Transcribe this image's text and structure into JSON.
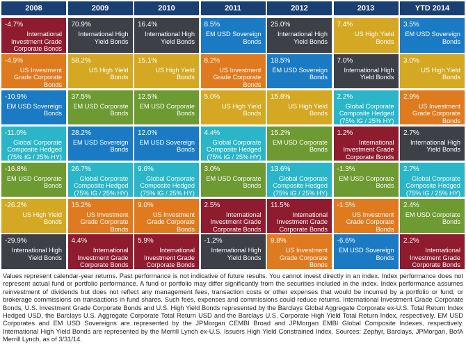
{
  "chart_data": {
    "type": "table",
    "years": [
      "2008",
      "2009",
      "2010",
      "2011",
      "2012",
      "2013",
      "YTD 2014"
    ],
    "categories": {
      "IIG": {
        "name": "International Investment Grade Corporate Bonds",
        "color": "#8e1b2e"
      },
      "USIG": {
        "name": "US Investment Grade Corporate Bonds",
        "color": "#e07a1f"
      },
      "EMSOV": {
        "name": "EM USD Sovereign Bonds",
        "color": "#1a7bc4"
      },
      "GCC": {
        "name": "Global Corporate Composite Hedged (75% IG / 25% HY)",
        "color": "#2bb5c9"
      },
      "EMCORP": {
        "name": "EM USD Corporate Bonds",
        "color": "#6e9a32"
      },
      "USHY": {
        "name": "US High Yield Bonds",
        "color": "#d4a823"
      },
      "IHY": {
        "name": "International High Yield Bonds",
        "color": "#3d4047"
      }
    },
    "columns": [
      [
        {
          "value": "-4.7%",
          "cat": "IIG",
          "label": "International Investment Grade Corporate Bonds"
        },
        {
          "value": "-4.9%",
          "cat": "USIG",
          "label": "US Investment Grade Corporate Bonds"
        },
        {
          "value": "-10.9%",
          "cat": "EMSOV",
          "label": "EM USD Sovereign Bonds"
        },
        {
          "value": "-11.0%",
          "cat": "GCC",
          "label": "Global Corporate Composite Hedged (75% IG / 25% HY)"
        },
        {
          "value": "-16.8%",
          "cat": "EMCORP",
          "label": "EM USD Corporate Bonds"
        },
        {
          "value": "-26.2%",
          "cat": "USHY",
          "label": "US High Yield Bonds"
        },
        {
          "value": "-29.9%",
          "cat": "IHY",
          "label": "International High Yield Bonds"
        }
      ],
      [
        {
          "value": "70.9%",
          "cat": "IHY",
          "label": "International High Yield Bonds"
        },
        {
          "value": "58.2%",
          "cat": "USHY",
          "label": "US High Yield Bonds"
        },
        {
          "value": "37.5%",
          "cat": "EMCORP",
          "label": "EM USD Corporate Bonds"
        },
        {
          "value": "28.2%",
          "cat": "EMSOV",
          "label": "EM USD Sovereign Bonds"
        },
        {
          "value": "26.7%",
          "cat": "GCC",
          "label": "Global Corporate Composite Hedged (75% IG / 25% HY)"
        },
        {
          "value": "15.2%",
          "cat": "USIG",
          "label": "US Investment Grade Corporate Bonds"
        },
        {
          "value": "4.4%",
          "cat": "IIG",
          "label": "International Investment Grade Corporate Bonds"
        }
      ],
      [
        {
          "value": "16.4%",
          "cat": "IHY",
          "label": "International High Yield Bonds"
        },
        {
          "value": "15.1%",
          "cat": "USHY",
          "label": "US High Yield Bonds"
        },
        {
          "value": "12.5%",
          "cat": "EMCORP",
          "label": "EM USD Corporate Bonds"
        },
        {
          "value": "12.0%",
          "cat": "EMSOV",
          "label": "EM USD Sovereign Bonds"
        },
        {
          "value": "9.6%",
          "cat": "GCC",
          "label": "Global Corporate Composite Hedged (75% IG / 25% HY)"
        },
        {
          "value": "9.0%",
          "cat": "USIG",
          "label": "US Investment Grade Corporate Bonds"
        },
        {
          "value": "5.9%",
          "cat": "IIG",
          "label": "International Investment Grade Corporate Bonds"
        }
      ],
      [
        {
          "value": "8.5%",
          "cat": "EMSOV",
          "label": "EM USD Sovereign Bonds"
        },
        {
          "value": "8.2%",
          "cat": "USIG",
          "label": "US Investment Grade Corporate Bonds"
        },
        {
          "value": "5.0%",
          "cat": "USHY",
          "label": "US High Yield Bonds"
        },
        {
          "value": "4.4%",
          "cat": "GCC",
          "label": "Global Corporate Composite Hedged (75% IG / 25% HY)"
        },
        {
          "value": "3.0%",
          "cat": "EMCORP",
          "label": "EM USD Corporate Bonds"
        },
        {
          "value": "2.5%",
          "cat": "IIG",
          "label": "International Investment Grade Corporate Bonds"
        },
        {
          "value": "-1.2%",
          "cat": "IHY",
          "label": "International High Yield Bonds"
        }
      ],
      [
        {
          "value": "25.0%",
          "cat": "IHY",
          "label": "International High Yield Bonds"
        },
        {
          "value": "18.5%",
          "cat": "EMSOV",
          "label": "EM USD Sovereign Bonds"
        },
        {
          "value": "15.8%",
          "cat": "USHY",
          "label": "US High Yield Bonds"
        },
        {
          "value": "15.2%",
          "cat": "EMCORP",
          "label": "EM USD Corporate Bonds"
        },
        {
          "value": "13.6%",
          "cat": "GCC",
          "label": "Global Corporate Composite Hedged (75% IG / 25% HY)"
        },
        {
          "value": "11.5%",
          "cat": "IIG",
          "label": "International Investment Grade Corporate Bonds"
        },
        {
          "value": "9.8%",
          "cat": "USIG",
          "label": "US Investment Grade Corporate Bonds"
        }
      ],
      [
        {
          "value": "7.4%",
          "cat": "USHY",
          "label": "US High Yield Bonds"
        },
        {
          "value": "7.0%",
          "cat": "IHY",
          "label": "International High Yield Bonds"
        },
        {
          "value": "2.2%",
          "cat": "GCC",
          "label": "Global Corporate Composite Hedged (75% IG / 25% HY)"
        },
        {
          "value": "1.2%",
          "cat": "IIG",
          "label": "International Investment Grade Corporate Bonds"
        },
        {
          "value": "-1.3%",
          "cat": "EMCORP",
          "label": "EM USD Corporate Bonds"
        },
        {
          "value": "-1.5%",
          "cat": "USIG",
          "label": "US Investment Grade Corporate Bonds"
        },
        {
          "value": "-6.6%",
          "cat": "EMSOV",
          "label": "EM USD Sovereign Bonds"
        }
      ],
      [
        {
          "value": "3.5%",
          "cat": "EMSOV",
          "label": "EM USD Sovereign Bonds"
        },
        {
          "value": "3.0%",
          "cat": "USHY",
          "label": "US High Yield Bonds"
        },
        {
          "value": "2.9%",
          "cat": "USIG",
          "label": "US Investment Grade Corporate Bonds"
        },
        {
          "value": "2.7%",
          "cat": "IHY",
          "label": "International High Yield Bonds"
        },
        {
          "value": "2.7%",
          "cat": "GCC",
          "label": "Global Corporate Composite Hedged (75% IG / 25% HY)"
        },
        {
          "value": "2.4%",
          "cat": "EMCORP",
          "label": "EM USD Corporate Bonds"
        },
        {
          "value": "2.2%",
          "cat": "IIG",
          "label": "International Investment Grade Corporate Bonds"
        }
      ]
    ]
  },
  "header_color": "#1a3f73",
  "footnote": "Values represent calendar-year returns. Past performance is not indicative of future results. You cannot invest directly in an index. Index performance does not represent actual fund or portfolio performance. A fund or portfolio may differ significantly from the securities included in the index. Index performance assumes reinvestment of dividends but does not reflect any management fees, transaction costs or other expenses that would be incurred by a portfolio or fund, or brokerage commissions on transactions in fund shares. Such fees, expenses and commissions could reduce returns. International Investment Grade Corporate Bonds, U.S. Investment Grade Corporate Bonds and U.S. High Yield Bonds represented by the Barclays Global Aggregate Corporate ex-U.S. Total Return Index Hedged USD, the Barclays U.S. Aggregate Corporate Total Return USD and the Barclays U.S. Corporate High Yield Total Return Index, respectively. EM USD Corporates and EM USD Sovereigns are represented by the JPMorgan CEMBI Broad and JPMorgan EMBI Global Composite Indexes, respectively. International High Yield Bonds are represented by the Merrill Lynch ex-U.S. Issuers High Yield Constrained Index. Sources: Zephyr, Barclays, JPMorgan, BofA Merrill Lynch, as of 3/31/14."
}
